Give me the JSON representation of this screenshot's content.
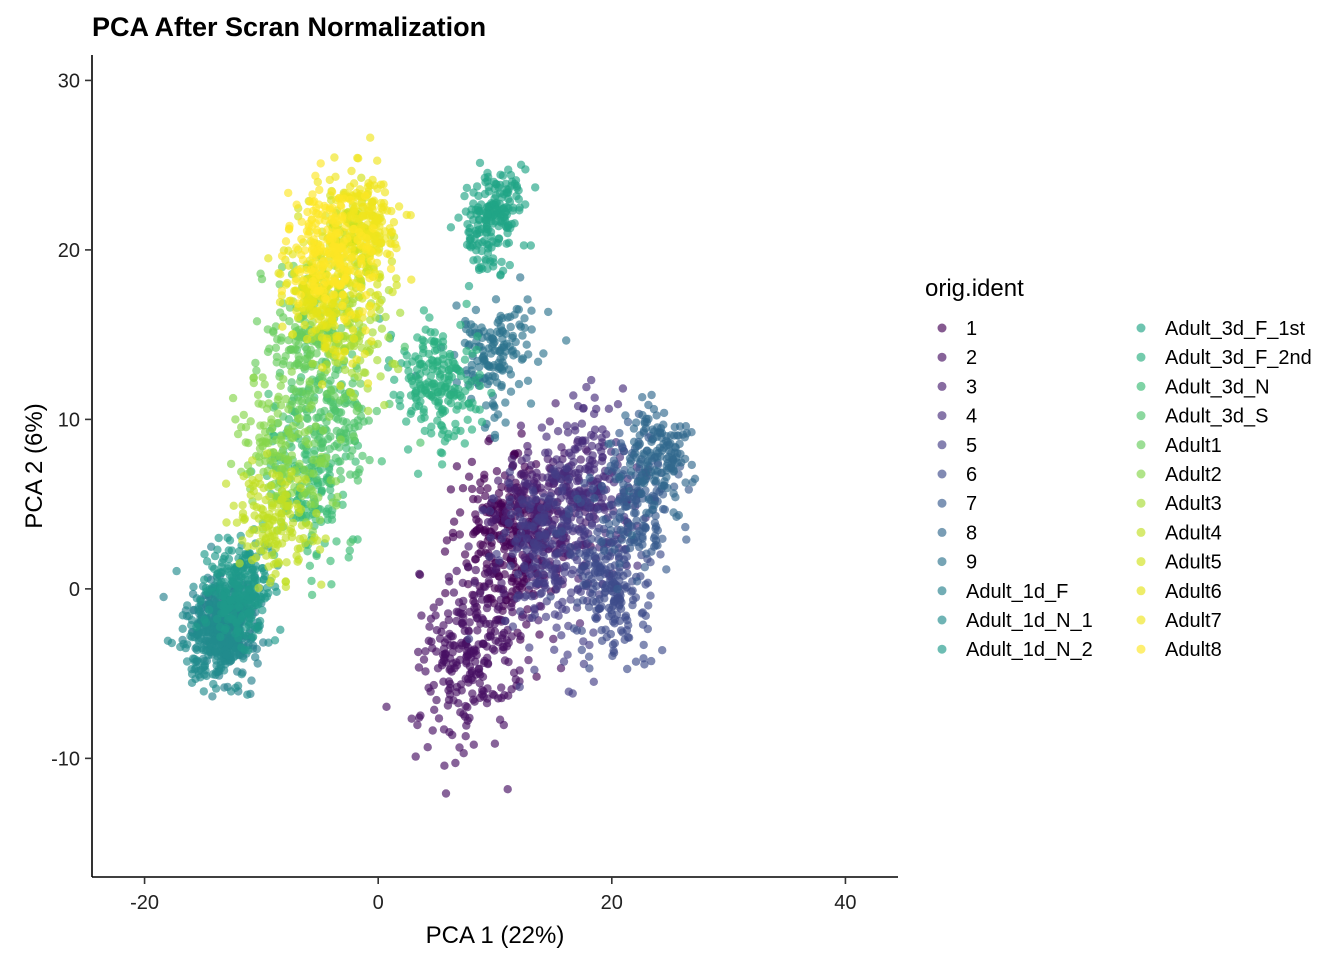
{
  "chart_data": {
    "type": "scatter",
    "title": "PCA After Scran Normalization",
    "xlabel": "PCA 1 (22%)",
    "ylabel": "PCA 2 (6%)",
    "xlim": [
      -24.5,
      44.5
    ],
    "ylim": [
      -17,
      31.5
    ],
    "x_ticks": [
      -20,
      0,
      20,
      40
    ],
    "x_tick_labels": [
      "-20",
      "0",
      "20",
      "40"
    ],
    "y_ticks": [
      -10,
      0,
      10,
      20,
      30
    ],
    "y_tick_labels": [
      "-10",
      "0",
      "10",
      "20",
      "30"
    ],
    "grid": false,
    "legend_title": "orig.ident",
    "legend_position": "right",
    "point_alpha": 0.65,
    "series": [
      {
        "name": "1",
        "color": "#440154",
        "center": [
          11,
          3
        ],
        "spread": [
          5.5,
          6.5
        ],
        "rot": 0.9,
        "n": 280
      },
      {
        "name": "2",
        "color": "#471063",
        "center": [
          8,
          -4
        ],
        "spread": [
          7,
          5.5
        ],
        "rot": 0.9,
        "n": 260
      },
      {
        "name": "3",
        "color": "#481d6f",
        "center": [
          14,
          4
        ],
        "spread": [
          6,
          6.5
        ],
        "rot": 0.9,
        "n": 240
      },
      {
        "name": "4",
        "color": "#472d7b",
        "center": [
          18,
          6
        ],
        "spread": [
          5.5,
          6.5
        ],
        "rot": 0.9,
        "n": 220
      },
      {
        "name": "5",
        "color": "#433e85",
        "center": [
          15,
          2
        ],
        "spread": [
          6,
          7
        ],
        "rot": 0.9,
        "n": 220
      },
      {
        "name": "6",
        "color": "#3e4c8a",
        "center": [
          20,
          0
        ],
        "spread": [
          4,
          6
        ],
        "rot": 0.9,
        "n": 200
      },
      {
        "name": "7",
        "color": "#375b8d",
        "center": [
          22,
          5
        ],
        "spread": [
          4,
          5.5
        ],
        "rot": 0.9,
        "n": 160
      },
      {
        "name": "8",
        "color": "#31688e",
        "center": [
          24,
          8
        ],
        "spread": [
          3.5,
          4.5
        ],
        "rot": 0.9,
        "n": 140
      },
      {
        "name": "9",
        "color": "#2c738e",
        "center": [
          10,
          14
        ],
        "spread": [
          5,
          5
        ],
        "rot": 1.0,
        "n": 160
      },
      {
        "name": "Adult_1d_F",
        "color": "#26818e",
        "center": [
          -13,
          -2
        ],
        "spread": [
          4,
          4.5
        ],
        "rot": 1.1,
        "n": 260
      },
      {
        "name": "Adult_1d_N_1",
        "color": "#228c8d",
        "center": [
          -14,
          -3
        ],
        "spread": [
          4,
          4.5
        ],
        "rot": 1.1,
        "n": 260
      },
      {
        "name": "Adult_1d_N_2",
        "color": "#1f998a",
        "center": [
          -12,
          0
        ],
        "spread": [
          4,
          4.5
        ],
        "rot": 1.1,
        "n": 240
      },
      {
        "name": "Adult_3d_F_1st",
        "color": "#20a486",
        "center": [
          10,
          22
        ],
        "spread": [
          4.5,
          3.5
        ],
        "rot": 1.1,
        "n": 200
      },
      {
        "name": "Adult_3d_F_2nd",
        "color": "#29af7f",
        "center": [
          5,
          12
        ],
        "spread": [
          5,
          6
        ],
        "rot": 1.1,
        "n": 200
      },
      {
        "name": "Adult_3d_N",
        "color": "#3bbb75",
        "center": [
          -6,
          6
        ],
        "spread": [
          5,
          7
        ],
        "rot": 1.1,
        "n": 160
      },
      {
        "name": "Adult_3d_S",
        "color": "#4ec36b",
        "center": [
          -4,
          10
        ],
        "spread": [
          5,
          7
        ],
        "rot": 1.1,
        "n": 160
      },
      {
        "name": "Adult1",
        "color": "#67cc5c",
        "center": [
          -6,
          14
        ],
        "spread": [
          5,
          7
        ],
        "rot": 1.1,
        "n": 160
      },
      {
        "name": "Adult2",
        "color": "#86d549",
        "center": [
          -8,
          8
        ],
        "spread": [
          5,
          7
        ],
        "rot": 1.1,
        "n": 160
      },
      {
        "name": "Adult3",
        "color": "#a8db34",
        "center": [
          -3,
          16
        ],
        "spread": [
          5,
          7
        ],
        "rot": 1.1,
        "n": 160
      },
      {
        "name": "Adult4",
        "color": "#c2df23",
        "center": [
          -9,
          4
        ],
        "spread": [
          4.5,
          6
        ],
        "rot": 1.1,
        "n": 150
      },
      {
        "name": "Adult5",
        "color": "#d1e21b",
        "center": [
          -2,
          20
        ],
        "spread": [
          4,
          5.5
        ],
        "rot": 1.1,
        "n": 160
      },
      {
        "name": "Adult6",
        "color": "#e5e419",
        "center": [
          -5,
          17
        ],
        "spread": [
          4,
          6
        ],
        "rot": 1.1,
        "n": 180
      },
      {
        "name": "Adult7",
        "color": "#f0e51d",
        "center": [
          -1,
          22
        ],
        "spread": [
          4,
          5
        ],
        "rot": 1.1,
        "n": 160
      },
      {
        "name": "Adult8",
        "color": "#fde725",
        "center": [
          -4,
          20
        ],
        "spread": [
          4.5,
          6
        ],
        "rot": 1.1,
        "n": 200
      }
    ]
  }
}
